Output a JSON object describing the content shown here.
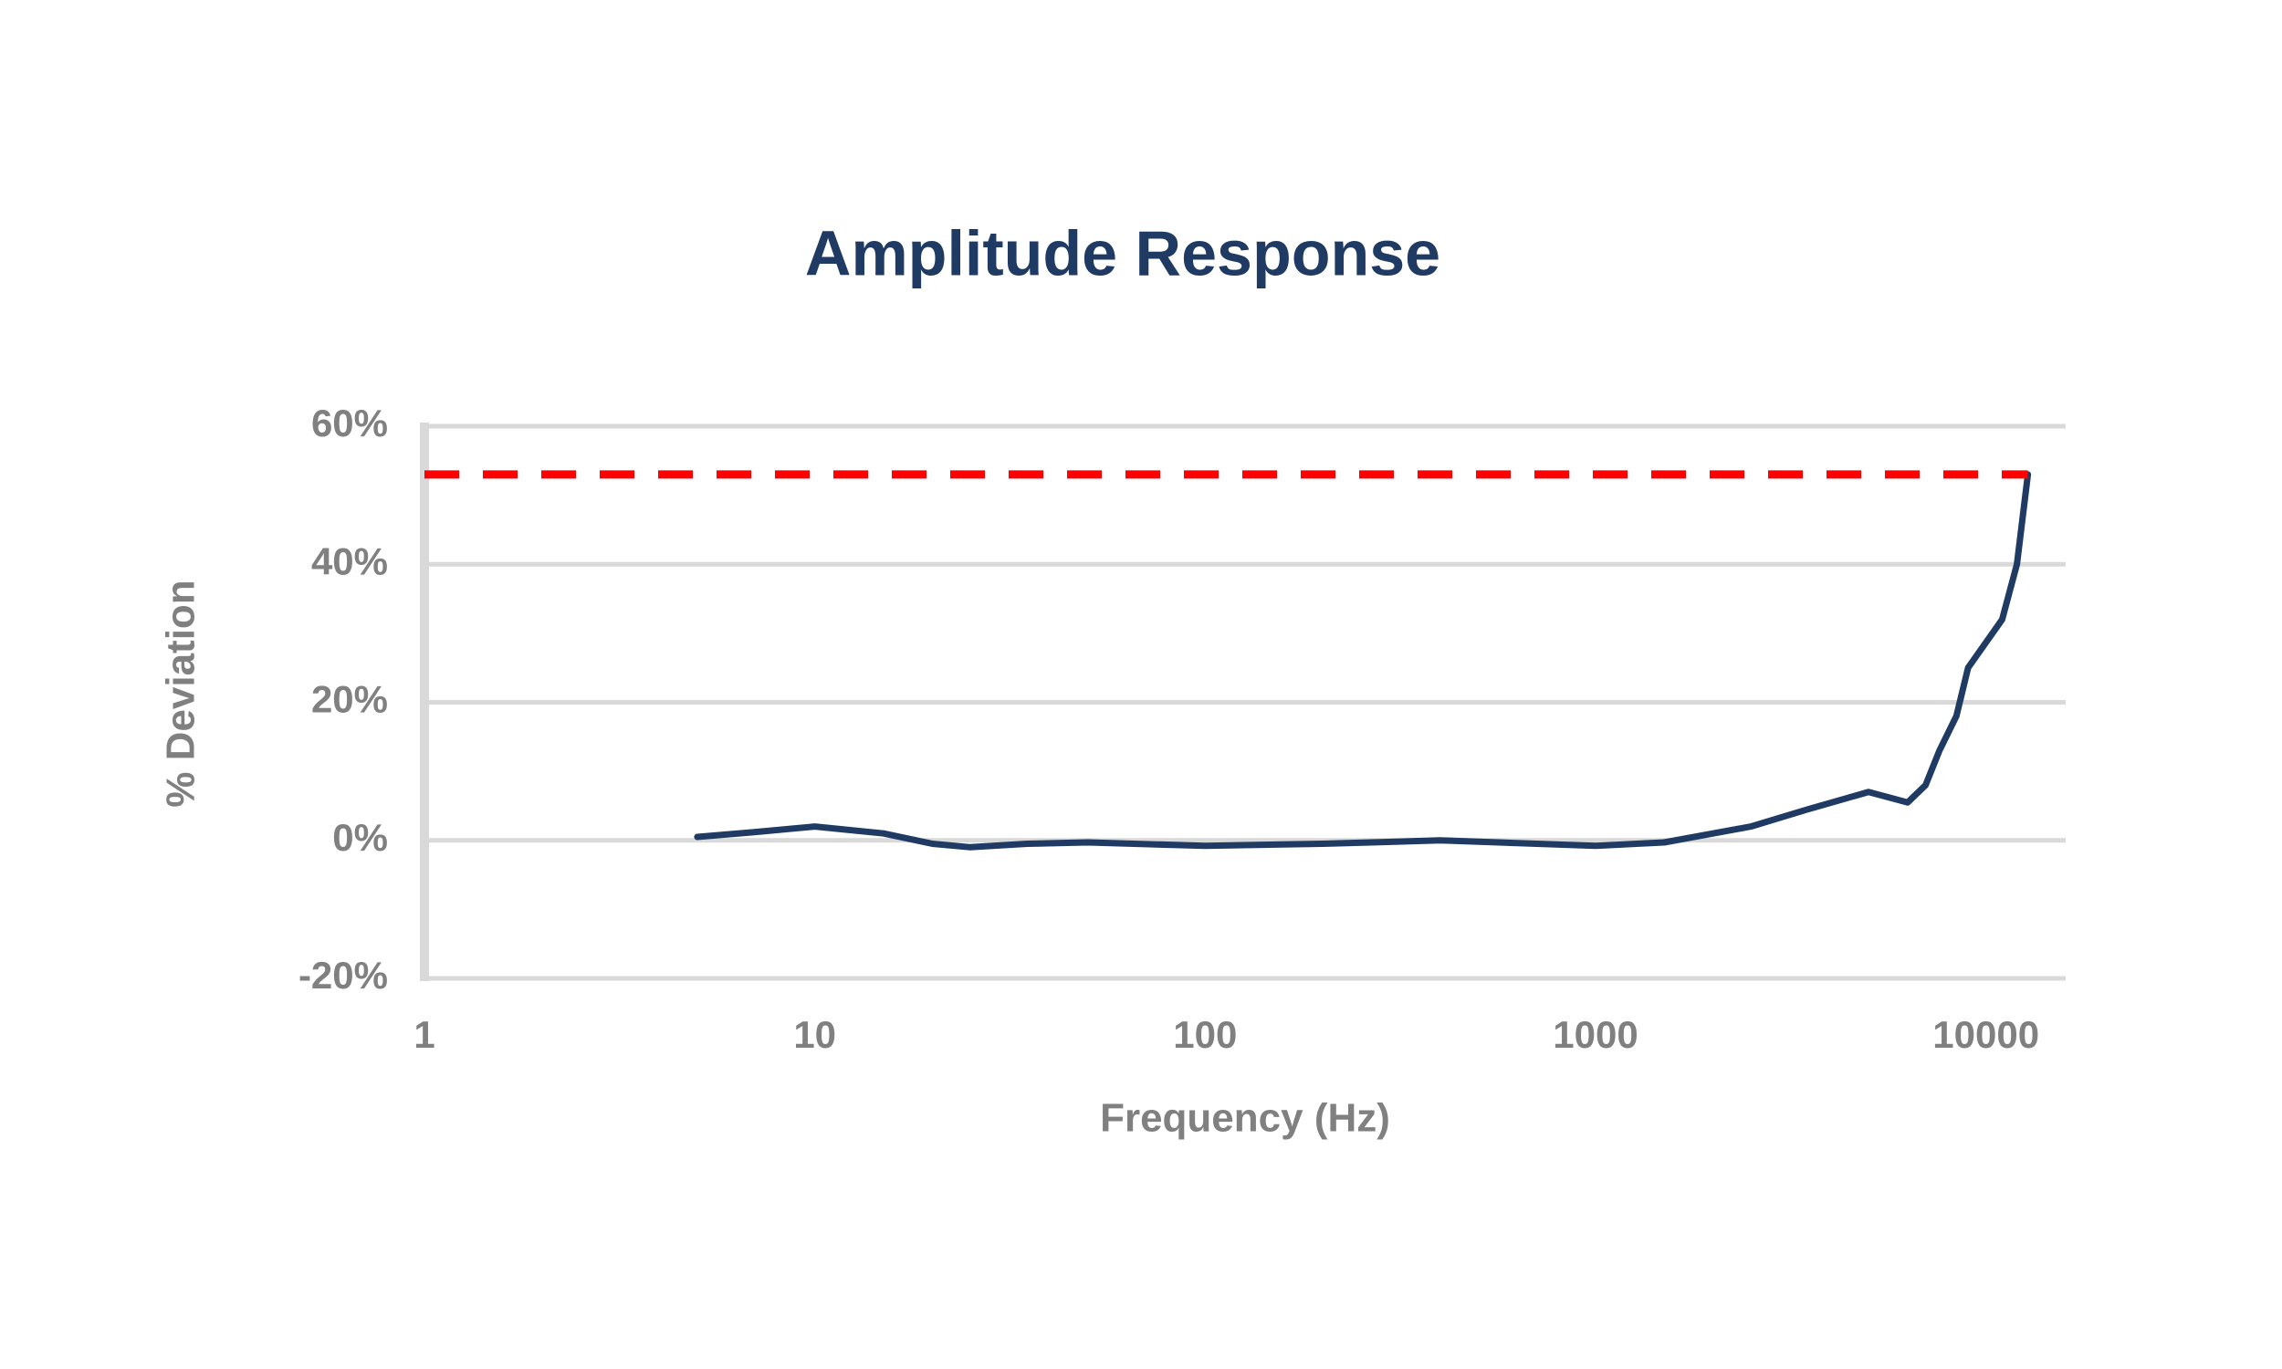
{
  "chart_data": {
    "type": "line",
    "title": "Amplitude Response",
    "xlabel": "Frequency (Hz)",
    "ylabel": "% Deviation",
    "xscale": "log",
    "xlim": [
      1,
      16000
    ],
    "xticks": [
      1,
      10,
      100,
      1000,
      10000
    ],
    "ylim": [
      -20,
      60
    ],
    "yticks": [
      {
        "value": -20,
        "label": "-20%"
      },
      {
        "value": 0,
        "label": "0%"
      },
      {
        "value": 20,
        "label": "20%"
      },
      {
        "value": 40,
        "label": "40%"
      },
      {
        "value": 60,
        "label": "60%"
      }
    ],
    "grid": true,
    "series": [
      {
        "color": "#1f3b64",
        "dashed": false,
        "x": [
          5,
          7,
          10,
          15,
          20,
          25,
          35,
          50,
          100,
          200,
          400,
          1000,
          1500,
          2500,
          3500,
          5000,
          6300,
          7000,
          7600,
          8400,
          9000,
          11000,
          12000,
          12800
        ],
        "values": [
          0.5,
          1.2,
          2,
          1,
          -0.5,
          -1,
          -0.5,
          -0.3,
          -0.8,
          -0.5,
          0,
          -0.8,
          -0.3,
          2,
          4.5,
          7,
          5.5,
          8,
          13,
          18,
          25,
          32,
          40,
          53
        ]
      },
      {
        "color": "#ff0000",
        "dashed": true,
        "x": [
          1,
          12800
        ],
        "values": [
          53,
          53
        ]
      }
    ]
  }
}
